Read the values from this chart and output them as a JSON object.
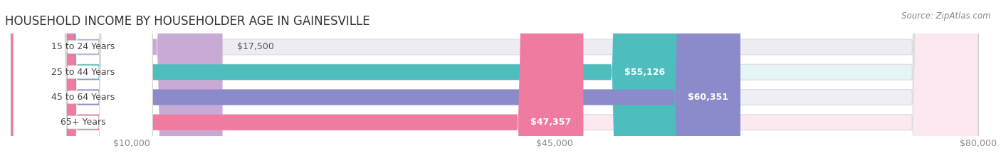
{
  "title": "HOUSEHOLD INCOME BY HOUSEHOLDER AGE IN GAINESVILLE",
  "source": "Source: ZipAtlas.com",
  "categories": [
    "15 to 24 Years",
    "25 to 44 Years",
    "45 to 64 Years",
    "65+ Years"
  ],
  "values": [
    17500,
    55126,
    60351,
    47357
  ],
  "bar_colors": [
    "#c9aad4",
    "#4dbdbd",
    "#8b8bcc",
    "#f07ba0"
  ],
  "bg_colors": [
    "#eeebf2",
    "#e5f5f5",
    "#edeef6",
    "#fbe8f0"
  ],
  "value_labels": [
    "$17,500",
    "$55,126",
    "$60,351",
    "$47,357"
  ],
  "xmax": 80000,
  "xticks": [
    10000,
    45000,
    80000
  ],
  "xtick_labels": [
    "$10,000",
    "$45,000",
    "$80,000"
  ],
  "background_color": "#ffffff",
  "title_fontsize": 12,
  "label_fontsize": 9,
  "value_fontsize": 9,
  "source_fontsize": 8.5
}
